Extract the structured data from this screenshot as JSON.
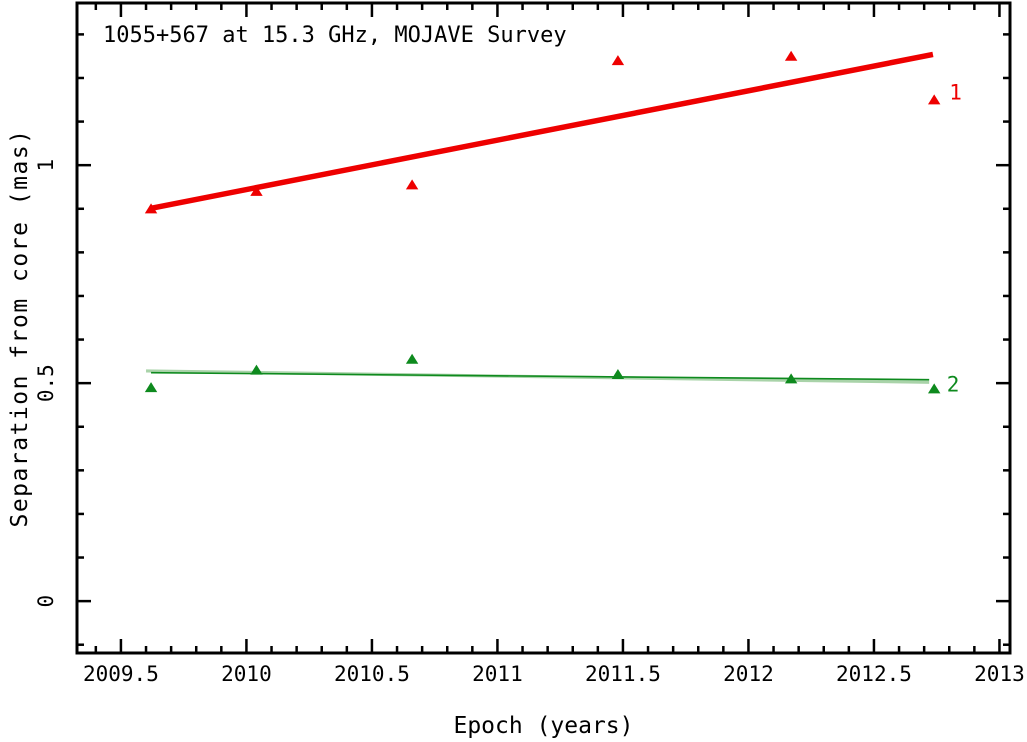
{
  "figure": {
    "title": "1055+567 at 15.3 GHz, MOJAVE Survey",
    "xlabel": "Epoch (years)",
    "ylabel": "Separation from core (mas)"
  },
  "colors": {
    "axis": "#000000",
    "background": "#ffffff",
    "red": "#ee0000",
    "green": "#0e8a1e",
    "green_light": "#a9d3a9"
  },
  "chart_data": {
    "type": "scatter",
    "title": "1055+567 at 15.3 GHz, MOJAVE Survey",
    "xlabel": "Epoch (years)",
    "ylabel": "Separation from core (mas)",
    "xlim": [
      2009.325,
      2013.042
    ],
    "ylim": [
      -0.119,
      1.372
    ],
    "grid": false,
    "x_major_ticks": [
      2009.5,
      2010,
      2010.5,
      2011,
      2011.5,
      2012,
      2012.5,
      2013
    ],
    "x_tick_labels": [
      "2009.5",
      "2010",
      "2010.5",
      "2011",
      "2011.5",
      "2012",
      "2012.5",
      "2013"
    ],
    "x_minor_step": 0.1,
    "y_major_ticks": [
      0,
      0.5,
      1
    ],
    "y_tick_labels": [
      "0",
      "0.5",
      "1"
    ],
    "y_minor_step": 0.1,
    "series": [
      {
        "name": "1",
        "marker": "filled-triangle",
        "color": "#ee0000",
        "x": [
          2009.62,
          2010.04,
          2010.66,
          2011.48,
          2012.17,
          2012.74
        ],
        "y": [
          0.9,
          0.94,
          0.955,
          1.24,
          1.25,
          1.15
        ],
        "fit_lines": [
          {
            "x1": 2009.62,
            "y1": 0.901,
            "x2": 2012.735,
            "y2": 1.254,
            "width": 5.5,
            "color": "#ee0000"
          }
        ],
        "label": {
          "text": "1",
          "x": 2012.8,
          "y": 1.167,
          "color": "#ee0000"
        }
      },
      {
        "name": "2",
        "marker": "filled-triangle",
        "color": "#0e8a1e",
        "x": [
          2009.62,
          2010.04,
          2010.66,
          2011.48,
          2012.17,
          2012.74
        ],
        "y": [
          0.49,
          0.53,
          0.555,
          0.52,
          0.51,
          0.487
        ],
        "fit_lines": [
          {
            "x1": 2009.6,
            "y1": 0.528,
            "x2": 2012.72,
            "y2": 0.502,
            "width": 3.2,
            "color": "#a9d3a9"
          },
          {
            "x1": 2009.62,
            "y1": 0.524,
            "x2": 2012.72,
            "y2": 0.508,
            "width": 1.6,
            "color": "#0e8a1e"
          }
        ],
        "label": {
          "text": "2",
          "x": 2012.79,
          "y": 0.497,
          "color": "#0e8a1e"
        }
      }
    ]
  }
}
